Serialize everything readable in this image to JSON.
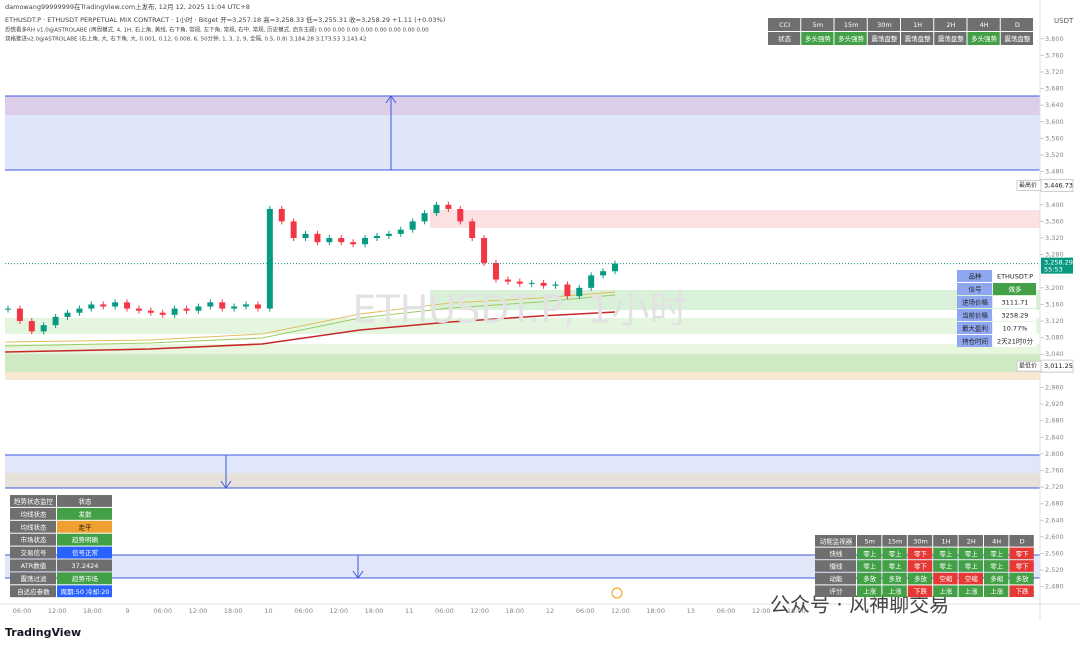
{
  "header": {
    "author_line": "damowang99999999在TradingView.com上发布, 12月 12, 2025 11:04 UTC+8",
    "symbol_line": "ETHUSDT.P · ETHUSDT PERPETUAL MIX CONTRACT · 1小时 · Bitget  开=3,257.18  高=3,258.33  低=3,255.31  收=3,258.29  +1.11 (+0.03%)",
    "indicator_1": "恐慌看多RH v1.0@ASTROLABE (两周模式, 4, 1H, 右上角, 黄线, 右下角, 常规, 左下角, 常规, 右中, 常规, 历史模式, 启东主题)  0.00  0.00  0.00  0.00  0.00  0.00  0.00  0.00",
    "indicator_2": "双格推进v2.0@ASTROLABE (右上角, 大, 右下角, 大, 0.001, 0.12, 0.008, 6, 50分钟, 1, 3, 2, 9, 全隔, 0.5, 0.8)  3,184.28  3,173.53  3,143.42"
  },
  "watermark": "ETHUSDT.P, 1小时",
  "brand": "TradingView",
  "wechat": "公众号 · 风神聊交易",
  "chart_data": {
    "type": "candlestick",
    "currency": "USDT",
    "up_color": "#089981",
    "down_color": "#f23645",
    "values": [
      3150,
      3120,
      3095,
      3110,
      3130,
      3140,
      3150,
      3160,
      3155,
      3165,
      3150,
      3145,
      3140,
      3135,
      3150,
      3145,
      3155,
      3165,
      3150,
      3155,
      3160,
      3150,
      3390,
      3360,
      3320,
      3330,
      3310,
      3320,
      3310,
      3305,
      3320,
      3325,
      3330,
      3340,
      3360,
      3380,
      3400,
      3390,
      3360,
      3320,
      3260,
      3220,
      3215,
      3210,
      3212,
      3205,
      3208,
      3180,
      3200,
      3230,
      3240,
      3258.29
    ],
    "ylim": [
      2448,
      3850
    ],
    "yticks": [
      {
        "value": 3800,
        "label": "3,800"
      },
      {
        "value": 3760,
        "label": "3,760"
      },
      {
        "value": 3720,
        "label": "3,720"
      },
      {
        "value": 3680,
        "label": "3,680"
      },
      {
        "value": 3640,
        "label": "3,640"
      },
      {
        "value": 3600,
        "label": "3,600"
      },
      {
        "value": 3560,
        "label": "3,560"
      },
      {
        "value": 3520,
        "label": "3,520"
      },
      {
        "value": 3480,
        "label": "3,480"
      },
      {
        "value": 3400,
        "label": "3,400"
      },
      {
        "value": 3360,
        "label": "3,360"
      },
      {
        "value": 3320,
        "label": "3,320"
      },
      {
        "value": 3280,
        "label": "3,280"
      },
      {
        "value": 3200,
        "label": "3,200"
      },
      {
        "value": 3160,
        "label": "3,160"
      },
      {
        "value": 3120,
        "label": "3,120"
      },
      {
        "value": 3080,
        "label": "3,080"
      },
      {
        "value": 3040,
        "label": "3,040"
      },
      {
        "value": 2960,
        "label": "2,960"
      },
      {
        "value": 2920,
        "label": "2,920"
      },
      {
        "value": 2880,
        "label": "2,880"
      },
      {
        "value": 2840,
        "label": "2,840"
      },
      {
        "value": 2800,
        "label": "2,800"
      },
      {
        "value": 2760,
        "label": "2,760"
      },
      {
        "value": 2720,
        "label": "2,720"
      },
      {
        "value": 2680,
        "label": "2,680"
      },
      {
        "value": 2640,
        "label": "2,640"
      },
      {
        "value": 2600,
        "label": "2,600"
      },
      {
        "value": 2560,
        "label": "2,560"
      },
      {
        "value": 2520,
        "label": "2,520"
      },
      {
        "value": 2480,
        "label": "2,480"
      }
    ],
    "x_labels": [
      "06:00",
      "12:00",
      "18:00",
      "9",
      "06:00",
      "12:00",
      "18:00",
      "10",
      "06:00",
      "12:00",
      "18:00",
      "11",
      "06:00",
      "12:00",
      "18:00",
      "12",
      "06:00",
      "12:00",
      "18:00",
      "13",
      "06:00",
      "12:00",
      "18:00"
    ],
    "high": {
      "name": "最高价",
      "value": 3446.73,
      "label": "3,446.73"
    },
    "low": {
      "name": "最低价",
      "value": 3011.25,
      "label": "3,011.25"
    },
    "last": {
      "value": 3258.29,
      "label": "3,258.29",
      "countdown": "55:53"
    }
  },
  "tf_table": {
    "header": [
      "CCI",
      "5m",
      "15m",
      "30m",
      "1H",
      "2H",
      "4H",
      "D"
    ],
    "header_colors": [
      "#6f6f6f",
      "#6f6f6f",
      "#6f6f6f",
      "#6f6f6f",
      "#6f6f6f",
      "#6f6f6f",
      "#6f6f6f",
      "#6f6f6f"
    ],
    "rows": [
      [
        "状态",
        "多头强势",
        "多头强势",
        "震荡盘整",
        "震荡盘整",
        "震荡盘整",
        "多头强势",
        "震荡盘整"
      ]
    ],
    "row_colors": [
      [
        "#6f6f6f",
        "#43a047",
        "#43a047",
        "#6f6f6f",
        "#6f6f6f",
        "#6f6f6f",
        "#43a047",
        "#6f6f6f"
      ]
    ]
  },
  "info_table": {
    "rows": [
      [
        "品种",
        "ETHUSDT.P"
      ],
      [
        "信号",
        "做多"
      ],
      [
        "进场价格",
        "3111.71"
      ],
      [
        "当前价格",
        "3258.29"
      ],
      [
        "最大盈利",
        "10.77%"
      ],
      [
        "持仓时间",
        "2天21时0分"
      ]
    ],
    "row_colors": [
      [
        "#8fa7f0",
        "#ffffff"
      ],
      [
        "#8fa7f0",
        "#43a047"
      ],
      [
        "#8fa7f0",
        "#ffffff"
      ],
      [
        "#8fa7f0",
        "#ffffff"
      ],
      [
        "#8fa7f0",
        "#ffffff"
      ],
      [
        "#8fa7f0",
        "#ffffff"
      ]
    ]
  },
  "trend_table": {
    "header": [
      "趋势状态监控",
      "状态"
    ],
    "header_colors": [
      "#6f6f6f",
      "#6f6f6f"
    ],
    "rows": [
      [
        "均线状态",
        "发散"
      ],
      [
        "均线状态",
        "走平"
      ],
      [
        "市场状态",
        "趋势明确"
      ],
      [
        "交易信号",
        "信号正常"
      ],
      [
        "ATR数值",
        "37.2424"
      ],
      [
        "震荡过滤",
        "趋势市场"
      ],
      [
        "自适应参数",
        "周期:50 冷却:20"
      ]
    ],
    "row_colors": [
      [
        "#6f6f6f",
        "#43a047"
      ],
      [
        "#6f6f6f",
        "#f0a030"
      ],
      [
        "#6f6f6f",
        "#43a047"
      ],
      [
        "#6f6f6f",
        "#2962ff"
      ],
      [
        "#6f6f6f",
        "#6f6f6f"
      ],
      [
        "#6f6f6f",
        "#43a047"
      ],
      [
        "#6f6f6f",
        "#2962ff"
      ]
    ]
  },
  "momentum_table": {
    "header": [
      "动能监视器",
      "5m",
      "15m",
      "30m",
      "1H",
      "2H",
      "4H",
      "D"
    ],
    "header_colors": [
      "#6f6f6f",
      "#6f6f6f",
      "#6f6f6f",
      "#6f6f6f",
      "#6f6f6f",
      "#6f6f6f",
      "#6f6f6f",
      "#6f6f6f"
    ],
    "rows": [
      [
        "快线",
        "零上",
        "零上",
        "零下",
        "零上",
        "零上",
        "零上",
        "零下"
      ],
      [
        "慢线",
        "零上",
        "零上",
        "零下",
        "零上",
        "零上",
        "零上",
        "零下"
      ],
      [
        "动能",
        "多放",
        "多放",
        "多放",
        "空缩",
        "空缩",
        "多缩",
        "多放"
      ],
      [
        "评分",
        "上涨",
        "上涨",
        "下跌",
        "上涨",
        "上涨",
        "上涨",
        "下跌"
      ]
    ],
    "row_colors": [
      [
        "#6f6f6f",
        "#43a047",
        "#43a047",
        "#e53935",
        "#43a047",
        "#43a047",
        "#43a047",
        "#e53935"
      ],
      [
        "#6f6f6f",
        "#43a047",
        "#43a047",
        "#e53935",
        "#43a047",
        "#43a047",
        "#43a047",
        "#e53935"
      ],
      [
        "#6f6f6f",
        "#43a047",
        "#43a047",
        "#43a047",
        "#e53935",
        "#e53935",
        "#43a047",
        "#43a047"
      ],
      [
        "#6f6f6f",
        "#43a047",
        "#43a047",
        "#e53935",
        "#43a047",
        "#43a047",
        "#43a047",
        "#e53935"
      ]
    ]
  }
}
